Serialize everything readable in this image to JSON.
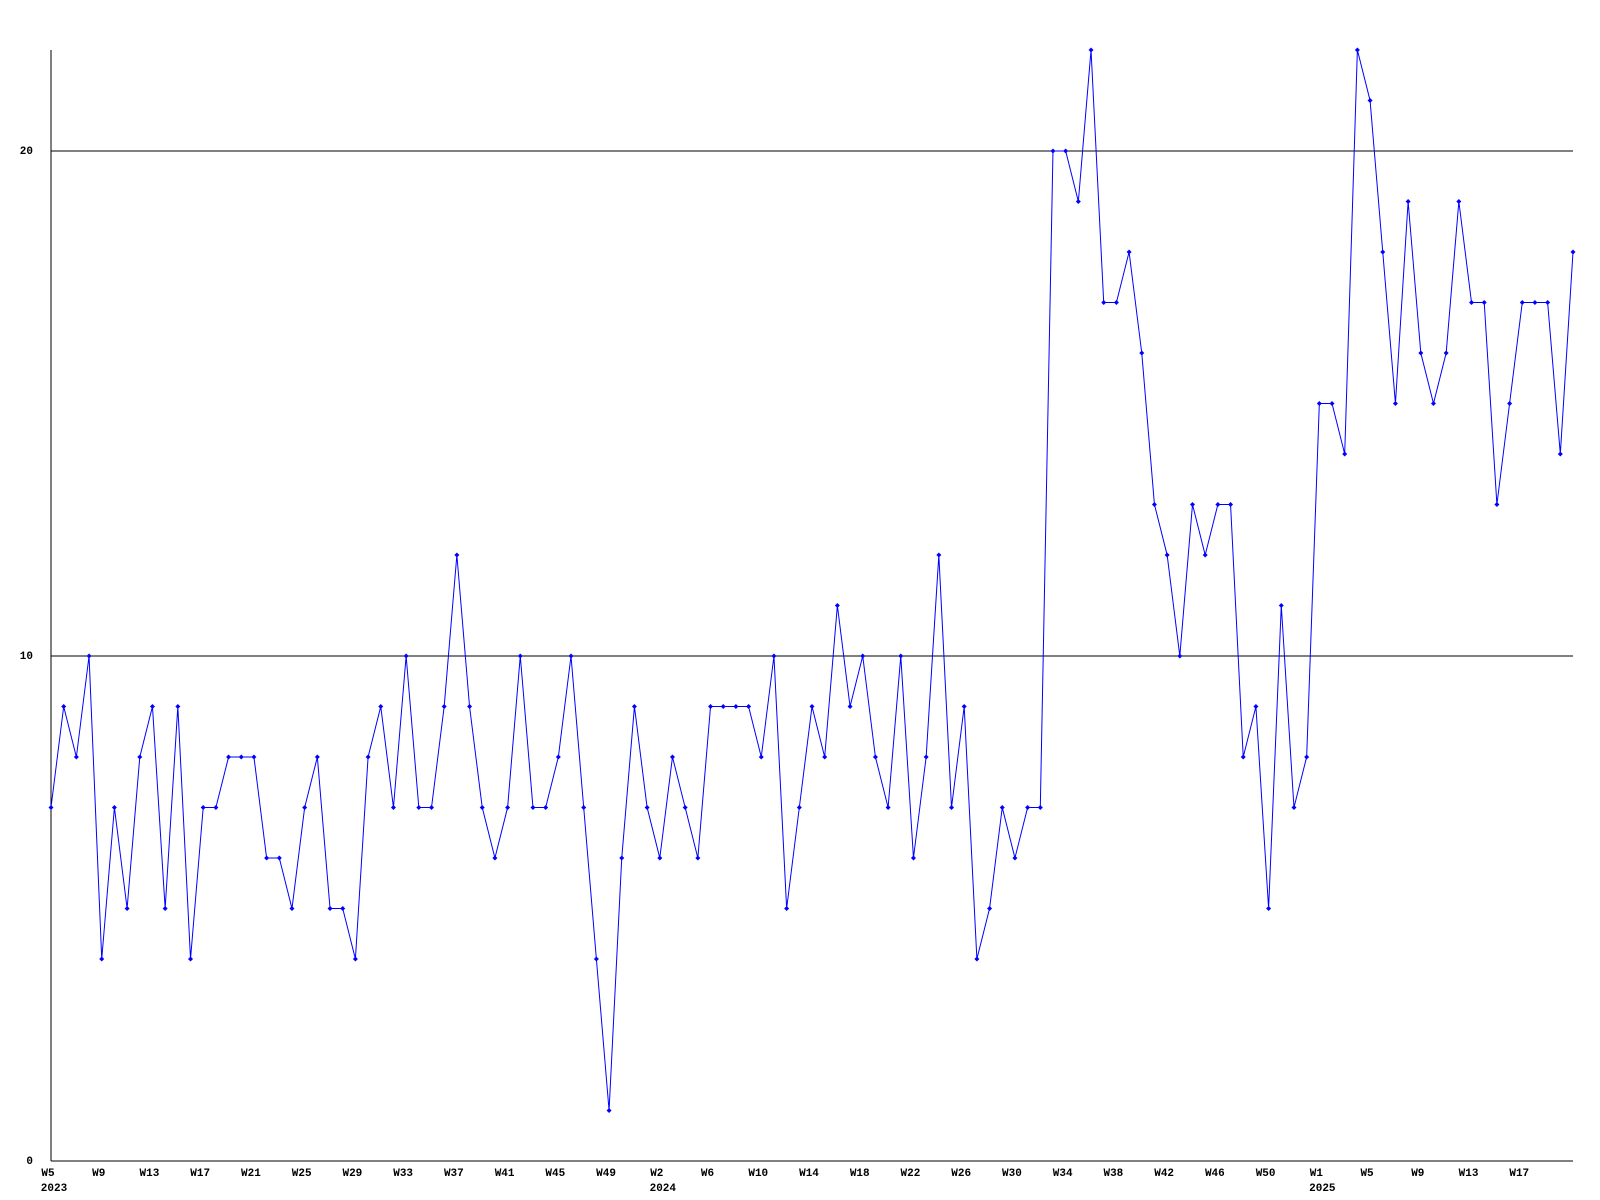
{
  "chart_data": {
    "type": "line",
    "color": "#0000ff",
    "grid": true,
    "categories": [
      "W5",
      null,
      null,
      null,
      "W9",
      null,
      null,
      null,
      "W13",
      null,
      null,
      null,
      "W17",
      null,
      null,
      null,
      "W21",
      null,
      null,
      null,
      "W25",
      null,
      null,
      null,
      "W29",
      null,
      null,
      null,
      "W33",
      null,
      null,
      null,
      "W37",
      null,
      null,
      null,
      "W41",
      null,
      null,
      null,
      "W45",
      null,
      null,
      null,
      "W49",
      null,
      null,
      null,
      "W2",
      null,
      null,
      null,
      "W6",
      null,
      null,
      null,
      "W10",
      null,
      null,
      null,
      "W14",
      null,
      null,
      null,
      "W18",
      null,
      null,
      null,
      "W22",
      null,
      null,
      null,
      "W26",
      null,
      null,
      null,
      "W30",
      null,
      null,
      null,
      "W34",
      null,
      null,
      null,
      "W38",
      null,
      null,
      null,
      "W42",
      null,
      null,
      null,
      "W46",
      null,
      null,
      null,
      "W50",
      null,
      null,
      null,
      "W1",
      null,
      null,
      null,
      "W5",
      null,
      null,
      null,
      "W9",
      null,
      null,
      null,
      "W13",
      null,
      null,
      null,
      "W17",
      null,
      null,
      null,
      null
    ],
    "x_groups": [
      {
        "label": "2023",
        "start": 0
      },
      {
        "label": "2024",
        "start": 48
      },
      {
        "label": "2025",
        "start": 100
      }
    ],
    "values": [
      7,
      9,
      8,
      10,
      4,
      7,
      5,
      8,
      9,
      5,
      9,
      4,
      7,
      7,
      8,
      8,
      8,
      6,
      6,
      5,
      7,
      8,
      5,
      5,
      4,
      8,
      9,
      7,
      10,
      7,
      7,
      9,
      12,
      9,
      7,
      6,
      7,
      10,
      7,
      7,
      8,
      10,
      7,
      4,
      1,
      6,
      9,
      7,
      6,
      8,
      7,
      6,
      9,
      9,
      9,
      9,
      8,
      10,
      5,
      7,
      9,
      8,
      11,
      9,
      10,
      8,
      7,
      10,
      6,
      8,
      12,
      7,
      9,
      4,
      5,
      7,
      6,
      7,
      7,
      20,
      20,
      19,
      22,
      17,
      17,
      18,
      16,
      13,
      12,
      10,
      13,
      12,
      13,
      13,
      8,
      9,
      5,
      11,
      7,
      8,
      15,
      15,
      14,
      22,
      21,
      18,
      15,
      19,
      16,
      15,
      16,
      19,
      17,
      17,
      13,
      15,
      17,
      17,
      17,
      14,
      18
    ],
    "ylim": [
      0,
      22
    ],
    "yticks": [
      0,
      10,
      20
    ]
  }
}
